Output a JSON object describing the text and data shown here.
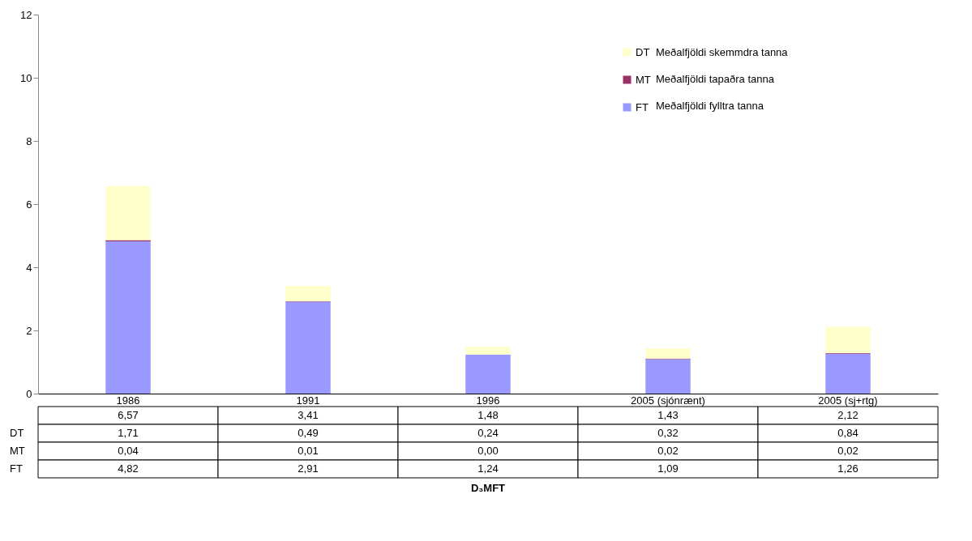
{
  "chart_data": {
    "type": "bar",
    "stacked": true,
    "categories": [
      "1986",
      "1991",
      "1996",
      "2005 (sjónrænt)",
      "2005 (sj+rtg)"
    ],
    "series": [
      {
        "name": "FT",
        "color": "#9999ff",
        "values": [
          4.82,
          2.91,
          1.24,
          1.09,
          1.26
        ],
        "value_labels": [
          "4,82",
          "2,91",
          "1,24",
          "1,09",
          "1,26"
        ]
      },
      {
        "name": "MT",
        "color": "#993366",
        "values": [
          0.04,
          0.01,
          0.0,
          0.02,
          0.02
        ],
        "value_labels": [
          "0,04",
          "0,01",
          "0,00",
          "0,02",
          "0,02"
        ]
      },
      {
        "name": "DT",
        "color": "#ffffcc",
        "values": [
          1.71,
          0.49,
          0.24,
          0.32,
          0.84
        ],
        "value_labels": [
          "1,71",
          "0,49",
          "0,24",
          "0,32",
          "0,84"
        ]
      }
    ],
    "totals": [
      "6,57",
      "3,41",
      "1,48",
      "1,43",
      "2,12"
    ],
    "annotations": [
      "Meðalfjöldi fylltra tanna",
      "Meðalfjöldi tapaðra tanna",
      "Meðalfjöldi skemmdra tanna",
      "D₃MFT"
    ],
    "ylim": [
      0,
      12
    ],
    "yticks": [
      0,
      2,
      4,
      6,
      8,
      10,
      12
    ],
    "grid": false,
    "legend": "top right"
  }
}
